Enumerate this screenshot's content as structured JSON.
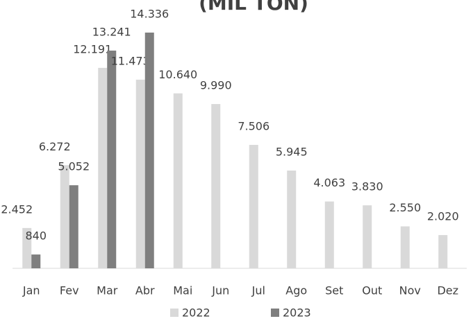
{
  "chart_data": {
    "type": "bar",
    "title": "(MIL TON)",
    "categories": [
      "Jan",
      "Fev",
      "Mar",
      "Abr",
      "Mai",
      "Jun",
      "Jul",
      "Ago",
      "Set",
      "Out",
      "Nov",
      "Dez"
    ],
    "series": [
      {
        "name": "2022",
        "color": "#d9d9d9",
        "values": [
          2452,
          6272,
          12191,
          11473,
          10640,
          9990,
          7506,
          5945,
          4063,
          3830,
          2550,
          2020
        ],
        "value_labels": [
          "2.452",
          "6.272",
          "12.191",
          "11.473",
          "10.640",
          "9.990",
          "7.506",
          "5.945",
          "4.063",
          "3.830",
          "2.550",
          "2.020"
        ]
      },
      {
        "name": "2023",
        "color": "#7f7f7f",
        "values": [
          840,
          5052,
          13241,
          14336,
          null,
          null,
          null,
          null,
          null,
          null,
          null,
          null
        ],
        "value_labels": [
          "840",
          "5.052",
          "13.241",
          "14.336",
          null,
          null,
          null,
          null,
          null,
          null,
          null,
          null
        ]
      }
    ]
  }
}
